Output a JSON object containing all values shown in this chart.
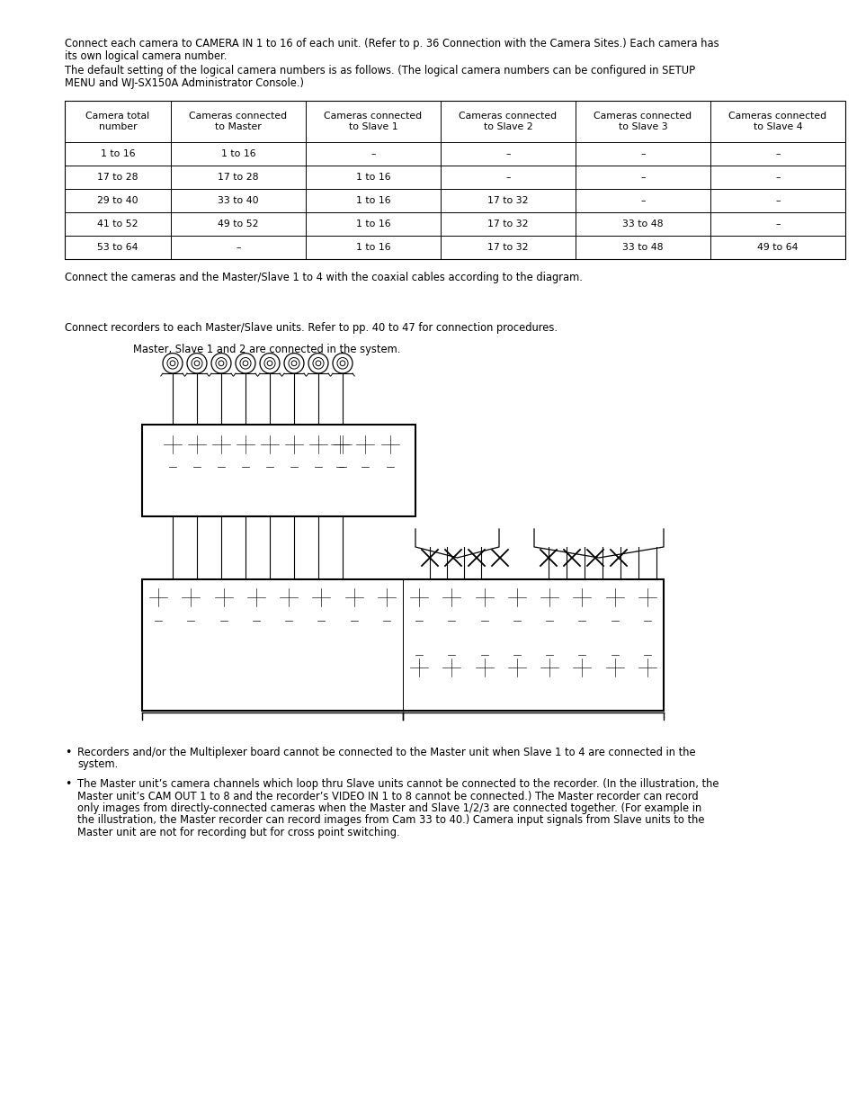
{
  "bg_color": "#ffffff",
  "text_color": "#000000",
  "para1_line1": "Connect each camera to CAMERA IN 1 to 16 of each unit. (Refer to p. 36 Connection with the Camera Sites.) Each camera has",
  "para1_line2": "its own logical camera number.",
  "para2_line1": "The default setting of the logical camera numbers is as follows. (The logical camera numbers can be configured in SETUP",
  "para2_line2": "MENU and WJ-SX150A Administrator Console.)",
  "table_headers": [
    "Camera total\nnumber",
    "Cameras connected\nto Master",
    "Cameras connected\nto Slave 1",
    "Cameras connected\nto Slave 2",
    "Cameras connected\nto Slave 3",
    "Cameras connected\nto Slave 4"
  ],
  "table_rows": [
    [
      "1 to 16",
      "1 to 16",
      "–",
      "–",
      "–",
      "–"
    ],
    [
      "17 to 28",
      "17 to 28",
      "1 to 16",
      "–",
      "–",
      "–"
    ],
    [
      "29 to 40",
      "33 to 40",
      "1 to 16",
      "17 to 32",
      "–",
      "–"
    ],
    [
      "41 to 52",
      "49 to 52",
      "1 to 16",
      "17 to 32",
      "33 to 48",
      "–"
    ],
    [
      "53 to 64",
      "–",
      "1 to 16",
      "17 to 32",
      "33 to 48",
      "49 to 64"
    ]
  ],
  "para3": "Connect the cameras and the Master/Slave 1 to 4 with the coaxial cables according to the diagram.",
  "para4": "Connect recorders to each Master/Slave units. Refer to pp. 40 to 47 for connection procedures.",
  "para5": "Master, Slave 1 and 2 are connected in the system.",
  "bullet1": "Recorders and/or the Multiplexer board cannot be connected to the Master unit when Slave 1 to 4 are connected in the",
  "bullet1b": "system.",
  "bullet2_line1": "The Master unit’s camera channels which loop thru Slave units cannot be connected to the recorder. (In the illustration, the",
  "bullet2_line2": "Master unit’s CAM OUT 1 to 8 and the recorder’s VIDEO IN 1 to 8 cannot be connected.) The Master recorder can record",
  "bullet2_line3": "only images from directly-connected cameras when the Master and Slave 1/2/3 are connected together. (For example in",
  "bullet2_line4": "the illustration, the Master recorder can record images from Cam 33 to 40.) Camera input signals from Slave units to the",
  "bullet2_line5": "Master unit are not for recording but for cross point switching."
}
